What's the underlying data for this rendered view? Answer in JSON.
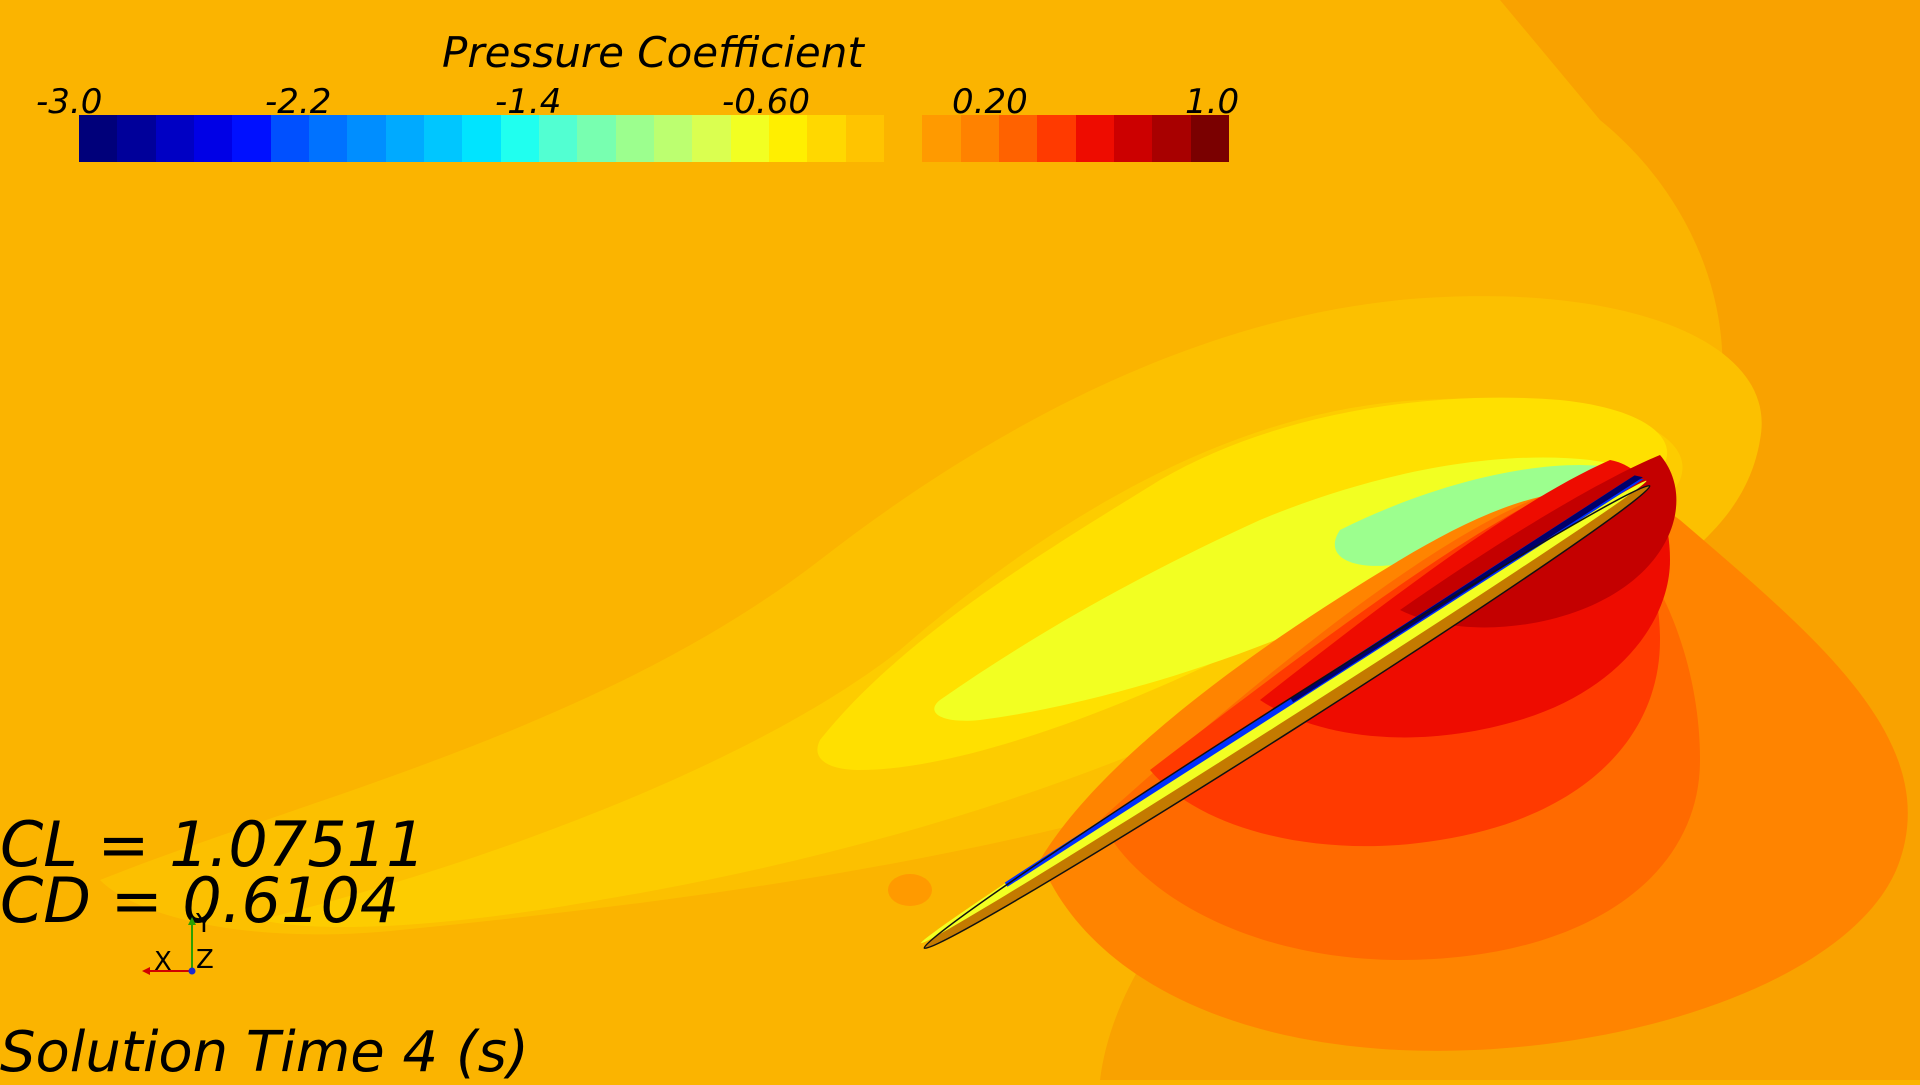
{
  "legend": {
    "title": "Pressure Coefficient",
    "ticks": [
      "-3.0",
      "-2.2",
      "-1.4",
      "-0.60",
      "0.20",
      "1.0"
    ],
    "colors": [
      "#00007a",
      "#00009a",
      "#0000c4",
      "#0000e6",
      "#0010ff",
      "#0050ff",
      "#0072ff",
      "#008eff",
      "#00aaff",
      "#00c6ff",
      "#00e4ff",
      "#20ffef",
      "#52ffd2",
      "#78ffb0",
      "#9cff8e",
      "#bcff70",
      "#daff50",
      "#f2ff22",
      "#ffef00",
      "#ffd800",
      "#ffc400",
      "#fbb400",
      "#ff9a00",
      "#ff8200",
      "#ff6200",
      "#ff3a00",
      "#ee0c00",
      "#cc0000",
      "#a80000",
      "#7a0000"
    ]
  },
  "readouts": {
    "cl": "CL = 1.07511",
    "cd": "CD = 0.6104",
    "time": "Solution Time 4 (s)"
  },
  "triad": {
    "x": "X",
    "y": "Y",
    "z": "Z"
  }
}
